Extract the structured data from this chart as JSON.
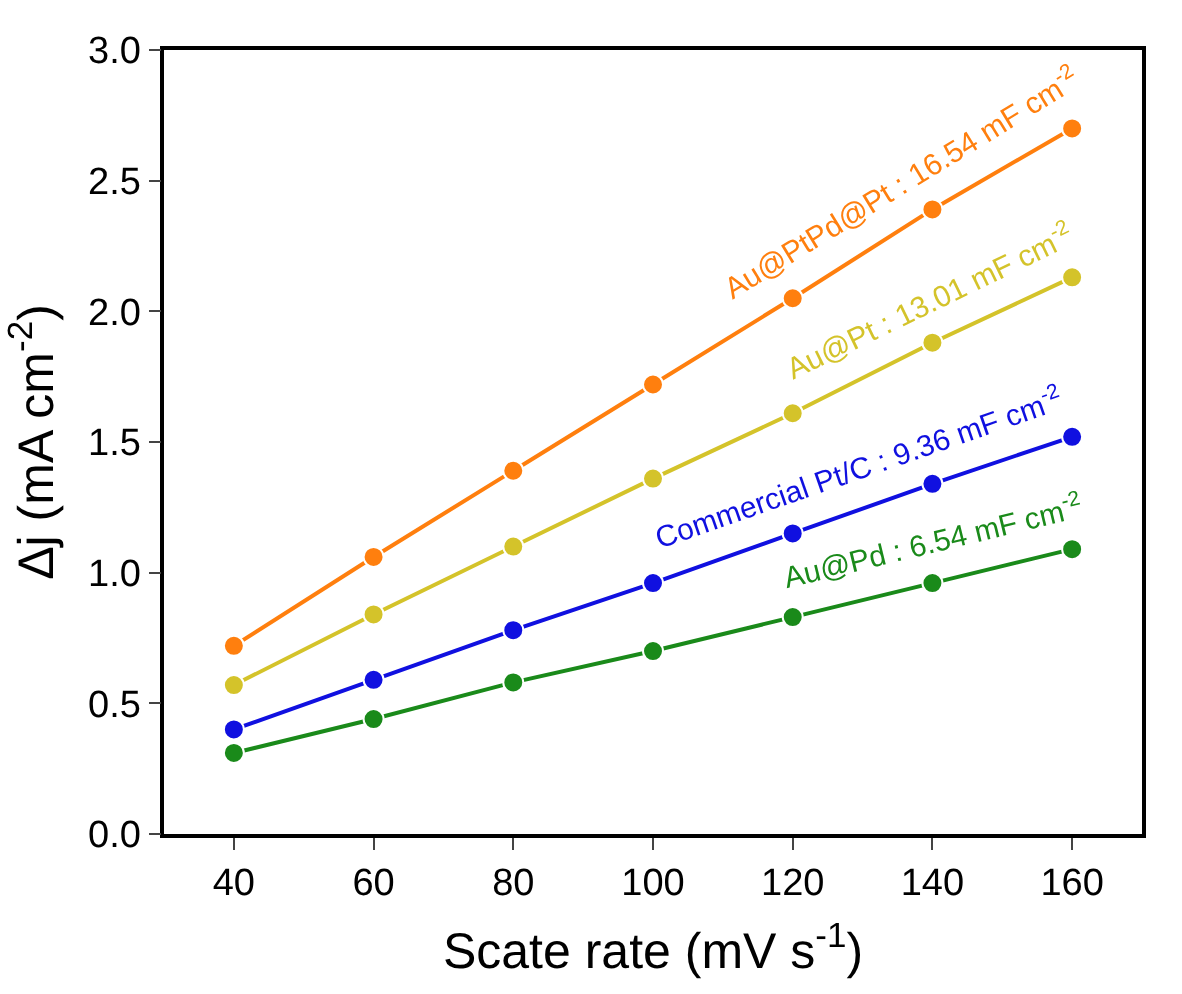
{
  "chart_data": {
    "type": "line",
    "xlabel": "Scate rate (mV s$^{-1}$)",
    "ylabel": "Δj (mA cm$^{-2}$)",
    "x": [
      40,
      60,
      80,
      100,
      120,
      140,
      160
    ],
    "series": [
      {
        "color": "#ff7f0e",
        "values": [
          0.72,
          1.06,
          1.39,
          1.72,
          2.05,
          2.39,
          2.7
        ]
      },
      {
        "color": "#d4c32a",
        "values": [
          0.57,
          0.84,
          1.1,
          1.36,
          1.61,
          1.88,
          2.13
        ]
      },
      {
        "color": "#1010e0",
        "values": [
          0.4,
          0.59,
          0.78,
          0.96,
          1.15,
          1.34,
          1.52
        ]
      },
      {
        "color": "#1a8a1a",
        "values": [
          0.31,
          0.44,
          0.58,
          0.7,
          0.83,
          0.96,
          1.09
        ]
      }
    ],
    "annotations": [
      "Au@PtPd@Pt : 16.54 mF cm$^{-2}$",
      "Au@Pt : 13.01 mF cm$^{-2}$",
      "Commercial Pt/C : 9.36 mF cm$^{-2}$",
      "Au@Pd : 6.54 mF cm$^{-2}$"
    ],
    "xlim": [
      30,
      170
    ],
    "xticks": [
      40,
      60,
      80,
      100,
      120,
      140,
      160
    ],
    "ylim": [
      0,
      3.0
    ],
    "yticks": [
      {
        "value": 0,
        "label": "0.0"
      },
      {
        "value": 0.5,
        "label": "0.5"
      },
      {
        "value": 1.0,
        "label": "1.0"
      },
      {
        "value": 1.5,
        "label": "1.5"
      },
      {
        "value": 2.0,
        "label": "2.0"
      },
      {
        "value": 2.5,
        "label": "2.5"
      },
      {
        "value": 3.0,
        "label": "3.0"
      }
    ],
    "marker": "circle",
    "line_style": "solid"
  }
}
